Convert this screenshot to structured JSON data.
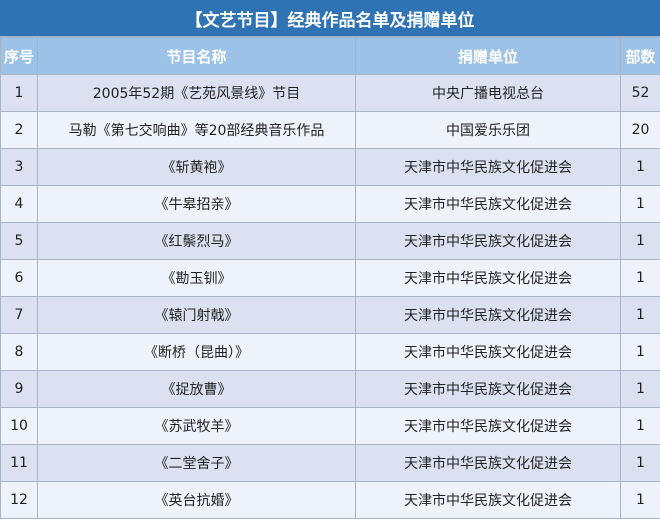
{
  "title": "【文艺节目】经典作品名单及捐赠单位",
  "columns": [
    "序号",
    "节目名称",
    "捐赠单位",
    "部数"
  ],
  "rows": [
    [
      "1",
      "2005年52期《艺苑风景线》节目",
      "中央广播电视总台",
      "52"
    ],
    [
      "2",
      "马勒《第七交响曲》等20部经典音乐作品",
      "中国爱乐乐团",
      "20"
    ],
    [
      "3",
      "《斩黄袍》",
      "天津市中华民族文化促进会",
      "1"
    ],
    [
      "4",
      "《牛皋招亲》",
      "天津市中华民族文化促进会",
      "1"
    ],
    [
      "5",
      "《红鬃烈马》",
      "天津市中华民族文化促进会",
      "1"
    ],
    [
      "6",
      "《勘玉钏》",
      "天津市中华民族文化促进会",
      "1"
    ],
    [
      "7",
      "《辕门射戟》",
      "天津市中华民族文化促进会",
      "1"
    ],
    [
      "8",
      "《断桥（昆曲）》",
      "天津市中华民族文化促进会",
      "1"
    ],
    [
      "9",
      "《捉放曹》",
      "天津市中华民族文化促进会",
      "1"
    ],
    [
      "10",
      "《苏武牧羊》",
      "天津市中华民族文化促进会",
      "1"
    ],
    [
      "11",
      "《二堂舍子》",
      "天津市中华民族文化促进会",
      "1"
    ],
    [
      "12",
      "《英台抗婚》",
      "天津市中华民族文化促进会",
      "1"
    ]
  ],
  "colors": {
    "title_bg": "#2f73b5",
    "header_bg": "#9cc2e8",
    "row_odd": "#dbe1f1",
    "row_even": "#eef2fa"
  }
}
